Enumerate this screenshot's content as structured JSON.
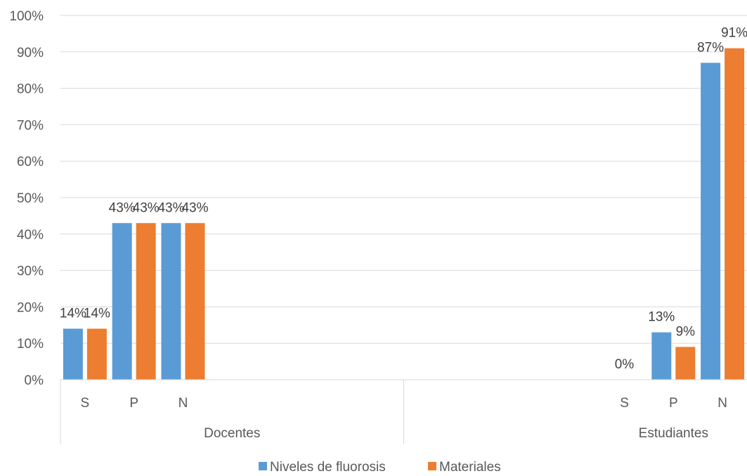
{
  "chart_data": {
    "type": "bar",
    "groups": [
      {
        "name": "Docentes",
        "categories": [
          "S",
          "P",
          "N"
        ]
      },
      {
        "name": "Estudiantes",
        "categories": [
          "S",
          "P",
          "N"
        ]
      }
    ],
    "series": [
      {
        "name": "Niveles de fluorosis",
        "color": "#5b9bd5",
        "values": [
          14,
          43,
          43,
          0,
          13,
          87
        ]
      },
      {
        "name": "Materiales",
        "color": "#ed7d31",
        "values": [
          14,
          43,
          43,
          null,
          9,
          91
        ]
      }
    ],
    "data_labels": [
      [
        "14%",
        "43%",
        "43%",
        "0%",
        "13%",
        "87%"
      ],
      [
        "14%",
        "43%",
        "43%",
        "",
        "9%",
        "91%"
      ]
    ],
    "yticks": [
      "0%",
      "10%",
      "20%",
      "30%",
      "40%",
      "50%",
      "60%",
      "70%",
      "80%",
      "90%",
      "100%"
    ],
    "ylim": [
      0,
      100
    ],
    "grid": true,
    "legend_position": "bottom",
    "title": "",
    "xlabel": "",
    "ylabel": ""
  }
}
